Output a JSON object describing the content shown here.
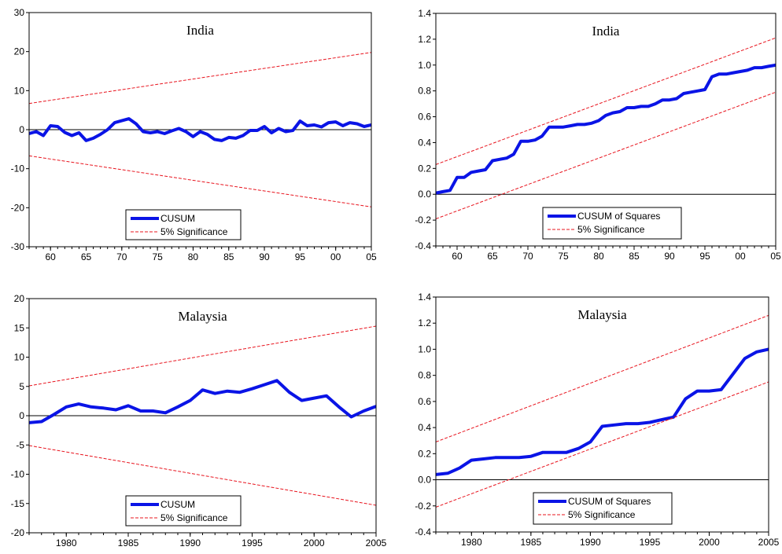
{
  "colors": {
    "cusum_line": "#0a14e6",
    "significance": "#e8141e",
    "axis": "#000000",
    "background": "#ffffff"
  },
  "chart_data": [
    {
      "id": "india_cusum",
      "type": "line",
      "title": "India",
      "xlabel": "",
      "ylabel": "",
      "x_tick_labels": [
        "60",
        "65",
        "70",
        "75",
        "80",
        "85",
        "90",
        "95",
        "00",
        "05"
      ],
      "x_tick_values": [
        1960,
        1965,
        1970,
        1975,
        1980,
        1985,
        1990,
        1995,
        2000,
        2005
      ],
      "xlim": [
        1957,
        2005
      ],
      "y_ticks": [
        -30,
        -20,
        -10,
        0,
        10,
        20,
        30
      ],
      "ylim": [
        -30,
        30
      ],
      "zero_line": true,
      "legend": {
        "placement": "bottom-center",
        "entries": [
          "CUSUM",
          "5% Significance"
        ]
      },
      "series": [
        {
          "name": "CUSUM",
          "style": "solid",
          "x": [
            1957,
            1958,
            1959,
            1960,
            1961,
            1962,
            1963,
            1964,
            1965,
            1966,
            1967,
            1968,
            1969,
            1970,
            1971,
            1972,
            1973,
            1974,
            1975,
            1976,
            1977,
            1978,
            1979,
            1980,
            1981,
            1982,
            1983,
            1984,
            1985,
            1986,
            1987,
            1988,
            1989,
            1990,
            1991,
            1992,
            1993,
            1994,
            1995,
            1996,
            1997,
            1998,
            1999,
            2000,
            2001,
            2002,
            2003,
            2004,
            2005
          ],
          "y": [
            -1,
            -0.5,
            -1.5,
            1,
            0.8,
            -0.7,
            -1.5,
            -0.8,
            -2.8,
            -2.2,
            -1.2,
            0,
            1.8,
            2.3,
            2.8,
            1.5,
            -0.5,
            -0.8,
            -0.5,
            -1,
            -0.3,
            0.3,
            -0.5,
            -1.8,
            -0.5,
            -1.2,
            -2.5,
            -2.8,
            -2,
            -2.2,
            -1.5,
            -0.2,
            -0.2,
            0.8,
            -0.8,
            0.3,
            -0.5,
            -0.2,
            2.2,
            1,
            1.2,
            0.7,
            1.8,
            2,
            1,
            1.8,
            1.5,
            0.8,
            1.2
          ]
        },
        {
          "name": "5% Significance",
          "style": "dashed",
          "x": [
            1957,
            2005
          ],
          "y": [
            6.7,
            19.8
          ]
        },
        {
          "style": "dashed",
          "x": [
            1957,
            2005
          ],
          "y": [
            -6.7,
            -19.8
          ]
        }
      ]
    },
    {
      "id": "india_cusumsq",
      "type": "line",
      "title": "India",
      "xlabel": "",
      "ylabel": "",
      "x_tick_labels": [
        "60",
        "65",
        "70",
        "75",
        "80",
        "85",
        "90",
        "95",
        "00",
        "05"
      ],
      "x_tick_values": [
        1960,
        1965,
        1970,
        1975,
        1980,
        1985,
        1990,
        1995,
        2000,
        2005
      ],
      "xlim": [
        1957,
        2005
      ],
      "y_ticks": [
        -0.4,
        -0.2,
        0.0,
        0.2,
        0.4,
        0.6,
        0.8,
        1.0,
        1.2,
        1.4
      ],
      "y_tick_labels": [
        "-0.4",
        "-0.2",
        "0.0",
        "0.2",
        "0.4",
        "0.6",
        "0.8",
        "1.0",
        "1.2",
        "1.4"
      ],
      "ylim": [
        -0.4,
        1.4
      ],
      "zero_line": true,
      "legend": {
        "placement": "bottom-center",
        "entries": [
          "CUSUM of Squares",
          "5% Significance"
        ]
      },
      "series": [
        {
          "name": "CUSUM of Squares",
          "style": "solid",
          "x": [
            1957,
            1958,
            1959,
            1960,
            1961,
            1962,
            1963,
            1964,
            1965,
            1966,
            1967,
            1968,
            1969,
            1970,
            1971,
            1972,
            1973,
            1974,
            1975,
            1976,
            1977,
            1978,
            1979,
            1980,
            1981,
            1982,
            1983,
            1984,
            1985,
            1986,
            1987,
            1988,
            1989,
            1990,
            1991,
            1992,
            1993,
            1994,
            1995,
            1996,
            1997,
            1998,
            1999,
            2000,
            2001,
            2002,
            2003,
            2004,
            2005
          ],
          "y": [
            0.01,
            0.02,
            0.03,
            0.13,
            0.13,
            0.17,
            0.18,
            0.19,
            0.26,
            0.27,
            0.28,
            0.31,
            0.41,
            0.41,
            0.42,
            0.45,
            0.52,
            0.52,
            0.52,
            0.53,
            0.54,
            0.54,
            0.55,
            0.57,
            0.61,
            0.63,
            0.64,
            0.67,
            0.67,
            0.68,
            0.68,
            0.7,
            0.73,
            0.73,
            0.74,
            0.78,
            0.79,
            0.8,
            0.81,
            0.91,
            0.93,
            0.93,
            0.94,
            0.95,
            0.96,
            0.98,
            0.98,
            0.99,
            1.0
          ]
        },
        {
          "name": "5% Significance",
          "style": "dashed",
          "x": [
            1957,
            2005
          ],
          "y": [
            0.23,
            1.21
          ]
        },
        {
          "style": "dashed",
          "x": [
            1957,
            2005
          ],
          "y": [
            -0.19,
            0.79
          ]
        }
      ]
    },
    {
      "id": "malaysia_cusum",
      "type": "line",
      "title": "Malaysia",
      "xlabel": "",
      "ylabel": "",
      "x_tick_labels": [
        "1980",
        "1985",
        "1990",
        "1995",
        "2000",
        "2005"
      ],
      "x_tick_values": [
        1980,
        1985,
        1990,
        1995,
        2000,
        2005
      ],
      "xlim": [
        1977,
        2005
      ],
      "y_ticks": [
        -20,
        -15,
        -10,
        -5,
        0,
        5,
        10,
        15,
        20
      ],
      "ylim": [
        -20,
        20
      ],
      "zero_line": true,
      "legend": {
        "placement": "bottom-center",
        "entries": [
          "CUSUM",
          "5% Significance"
        ]
      },
      "series": [
        {
          "name": "CUSUM",
          "style": "solid",
          "x": [
            1977,
            1978,
            1979,
            1980,
            1981,
            1982,
            1983,
            1984,
            1985,
            1986,
            1987,
            1988,
            1989,
            1990,
            1991,
            1992,
            1993,
            1994,
            1995,
            1996,
            1997,
            1998,
            1999,
            2000,
            2001,
            2002,
            2003,
            2004,
            2005
          ],
          "y": [
            -1.2,
            -1,
            0.2,
            1.5,
            2,
            1.5,
            1.3,
            1,
            1.7,
            0.8,
            0.8,
            0.5,
            1.5,
            2.6,
            4.4,
            3.8,
            4.2,
            4,
            4.6,
            5.3,
            6,
            4,
            2.6,
            3,
            3.4,
            1.5,
            -0.2,
            0.8,
            1.6
          ]
        },
        {
          "name": "5% Significance",
          "style": "dashed",
          "x": [
            1977,
            2005
          ],
          "y": [
            5.1,
            15.3
          ]
        },
        {
          "style": "dashed",
          "x": [
            1977,
            2005
          ],
          "y": [
            -5.1,
            -15.3
          ]
        }
      ]
    },
    {
      "id": "malaysia_cusumsq",
      "type": "line",
      "title": "Malaysia",
      "xlabel": "",
      "ylabel": "",
      "x_tick_labels": [
        "1980",
        "1985",
        "1990",
        "1995",
        "2000",
        "2005"
      ],
      "x_tick_values": [
        1980,
        1985,
        1990,
        1995,
        2000,
        2005
      ],
      "xlim": [
        1977,
        2005
      ],
      "y_ticks": [
        -0.4,
        -0.2,
        0.0,
        0.2,
        0.4,
        0.6,
        0.8,
        1.0,
        1.2,
        1.4
      ],
      "y_tick_labels": [
        "-0.4",
        "-0.2",
        "0.0",
        "0.2",
        "0.4",
        "0.6",
        "0.8",
        "1.0",
        "1.2",
        "1.4"
      ],
      "ylim": [
        -0.4,
        1.4
      ],
      "zero_line": true,
      "legend": {
        "placement": "bottom-left",
        "entries": [
          "CUSUM of Squares",
          "5% Significance"
        ]
      },
      "series": [
        {
          "name": "CUSUM of Squares",
          "style": "solid",
          "x": [
            1977,
            1978,
            1979,
            1980,
            1981,
            1982,
            1983,
            1984,
            1985,
            1986,
            1987,
            1988,
            1989,
            1990,
            1991,
            1992,
            1993,
            1994,
            1995,
            1996,
            1997,
            1998,
            1999,
            2000,
            2001,
            2002,
            2003,
            2004,
            2005
          ],
          "y": [
            0.04,
            0.05,
            0.09,
            0.15,
            0.16,
            0.17,
            0.17,
            0.17,
            0.18,
            0.21,
            0.21,
            0.21,
            0.24,
            0.29,
            0.41,
            0.42,
            0.43,
            0.43,
            0.44,
            0.46,
            0.48,
            0.62,
            0.68,
            0.68,
            0.69,
            0.81,
            0.93,
            0.98,
            1.0
          ]
        },
        {
          "name": "5% Significance",
          "style": "dashed",
          "x": [
            1977,
            2005
          ],
          "y": [
            0.29,
            1.26
          ]
        },
        {
          "style": "dashed",
          "x": [
            1977,
            2005
          ],
          "y": [
            -0.21,
            0.75
          ]
        }
      ]
    }
  ]
}
